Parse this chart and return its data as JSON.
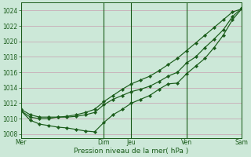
{
  "title": "",
  "xlabel": "Pression niveau de la mer( hPa )",
  "ylabel": "",
  "bg_color": "#cce8d8",
  "grid_color": "#c8a0b0",
  "line_color": "#1a5c1a",
  "ylim": [
    1007.5,
    1025.0
  ],
  "yticks": [
    1008,
    1010,
    1012,
    1014,
    1016,
    1018,
    1020,
    1022,
    1024
  ],
  "day_labels": [
    "Mer",
    "Dim",
    "Jeu",
    "Ven",
    "Sam"
  ],
  "day_positions": [
    0,
    9,
    12,
    18,
    24
  ],
  "xlim": [
    0,
    24
  ],
  "line1_x": [
    0,
    1,
    2,
    3,
    4,
    5,
    6,
    7,
    8,
    9,
    10,
    11,
    12,
    13,
    14,
    15,
    16,
    17,
    18,
    19,
    20,
    21,
    22,
    23,
    24
  ],
  "line1_y": [
    1011.0,
    1009.8,
    1009.3,
    1009.1,
    1008.9,
    1008.8,
    1008.6,
    1008.4,
    1008.3,
    1009.5,
    1010.5,
    1011.2,
    1012.0,
    1012.5,
    1013.0,
    1013.8,
    1014.5,
    1014.6,
    1015.8,
    1016.8,
    1017.8,
    1019.2,
    1020.8,
    1022.8,
    1024.2
  ],
  "line2_x": [
    0,
    1,
    2,
    3,
    4,
    5,
    6,
    7,
    8,
    9,
    10,
    11,
    12,
    13,
    14,
    15,
    16,
    17,
    18,
    19,
    20,
    21,
    22,
    23,
    24
  ],
  "line2_y": [
    1011.2,
    1010.5,
    1010.2,
    1010.2,
    1010.2,
    1010.2,
    1010.3,
    1010.5,
    1010.8,
    1011.8,
    1012.5,
    1013.0,
    1013.5,
    1013.8,
    1014.2,
    1014.8,
    1015.5,
    1016.0,
    1017.2,
    1018.0,
    1019.2,
    1020.3,
    1021.5,
    1023.2,
    1024.3
  ],
  "line3_x": [
    0,
    1,
    2,
    3,
    4,
    5,
    6,
    7,
    8,
    9,
    10,
    11,
    12,
    13,
    14,
    15,
    16,
    17,
    18,
    19,
    20,
    21,
    22,
    23,
    24
  ],
  "line3_y": [
    1011.0,
    1010.2,
    1010.0,
    1010.0,
    1010.2,
    1010.3,
    1010.5,
    1010.8,
    1011.2,
    1012.2,
    1013.0,
    1013.8,
    1014.5,
    1015.0,
    1015.5,
    1016.2,
    1017.0,
    1017.8,
    1018.8,
    1019.8,
    1020.8,
    1021.8,
    1022.8,
    1023.8,
    1024.2
  ]
}
